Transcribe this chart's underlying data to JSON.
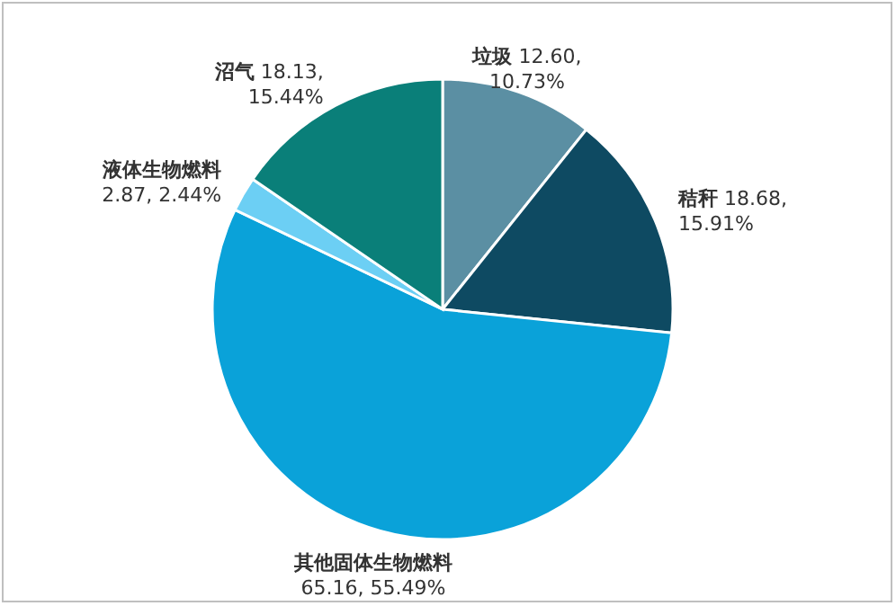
{
  "chart_data": {
    "type": "pie",
    "categories": [
      "垃圾",
      "秸秆",
      "其他固体生物燃料",
      "液体生物燃料",
      "沼气"
    ],
    "values": [
      12.6,
      18.68,
      65.16,
      2.87,
      18.13
    ],
    "colors": [
      "#5b8fa3",
      "#0e4a62",
      "#0aa2d9",
      "#6ccff4",
      "#0a7f79"
    ],
    "value_labels": [
      "12.60, 10.73%",
      "18.68, 15.91%",
      "65.16, 55.49%",
      "2.87, 2.44%",
      "18.13, 15.44%"
    ],
    "legend": false
  }
}
